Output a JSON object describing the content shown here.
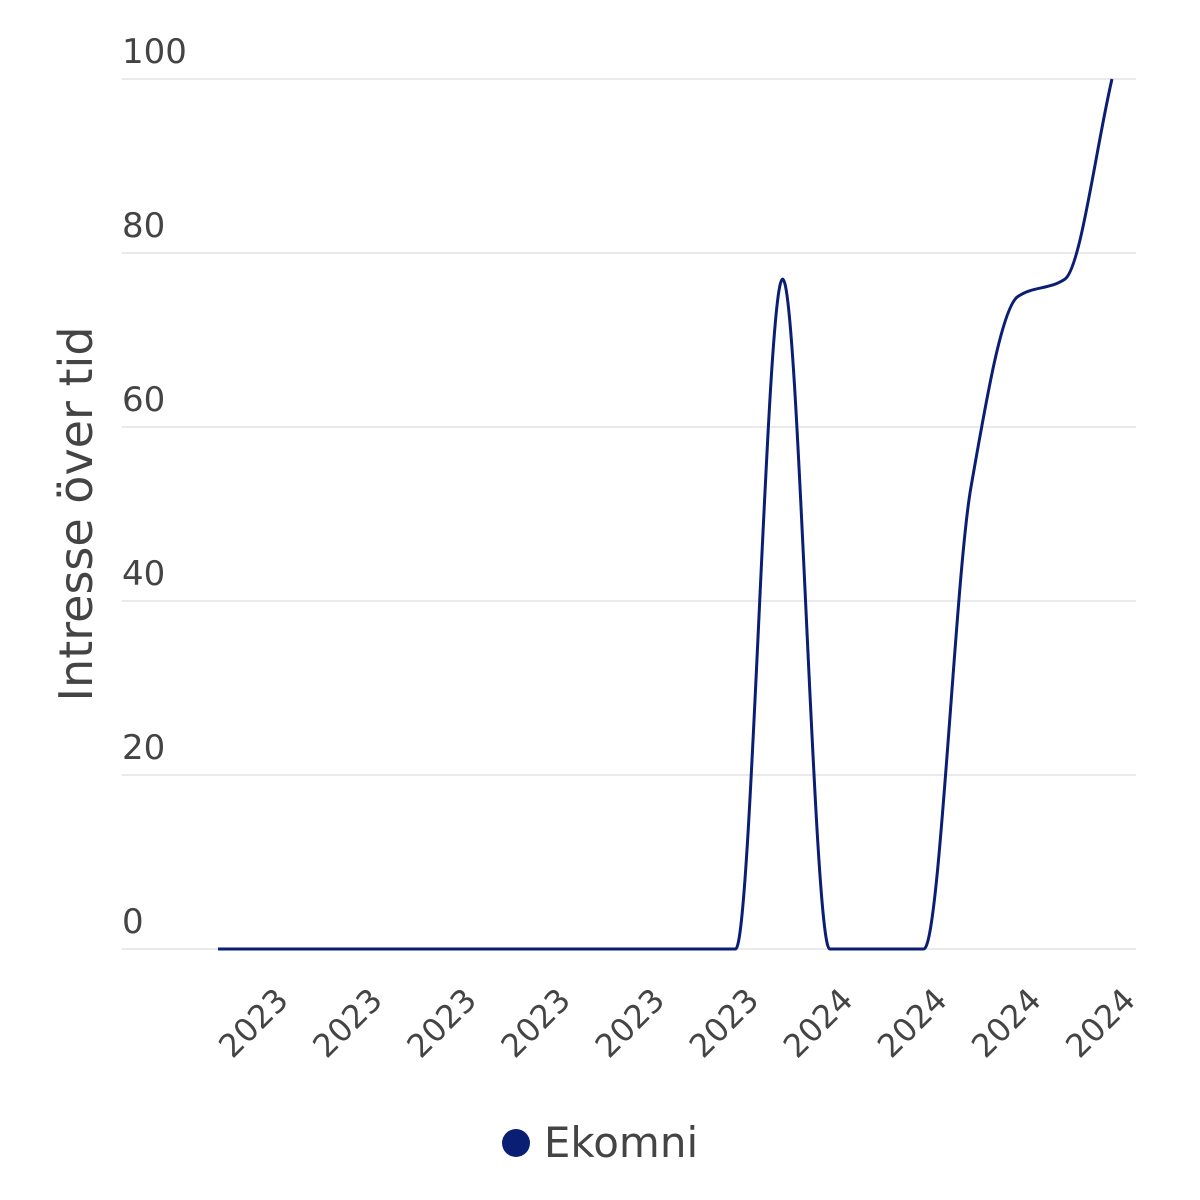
{
  "chart_data": {
    "type": "line",
    "title": "",
    "xlabel": "",
    "ylabel": "Intresse över tid",
    "ylim": [
      0,
      100
    ],
    "yticks": [
      0,
      20,
      40,
      60,
      80,
      100
    ],
    "grid": true,
    "legend_position": "bottom",
    "x_tick_labels": [
      "2023",
      "2023",
      "2023",
      "2023",
      "2023",
      "2023",
      "2024",
      "2024",
      "2024",
      "2024"
    ],
    "x_tick_indices": [
      1,
      3,
      5,
      7,
      9,
      11,
      13,
      15,
      17,
      19
    ],
    "series": [
      {
        "name": "Ekomni",
        "color": "#0a1f73",
        "values": [
          0,
          0,
          0,
          0,
          0,
          0,
          0,
          0,
          0,
          0,
          0,
          0,
          77,
          0,
          0,
          0,
          53,
          75,
          77,
          100
        ]
      }
    ]
  },
  "colors": {
    "grid": "#e3e3e3",
    "text": "#444444",
    "series": "#0a1f73"
  }
}
